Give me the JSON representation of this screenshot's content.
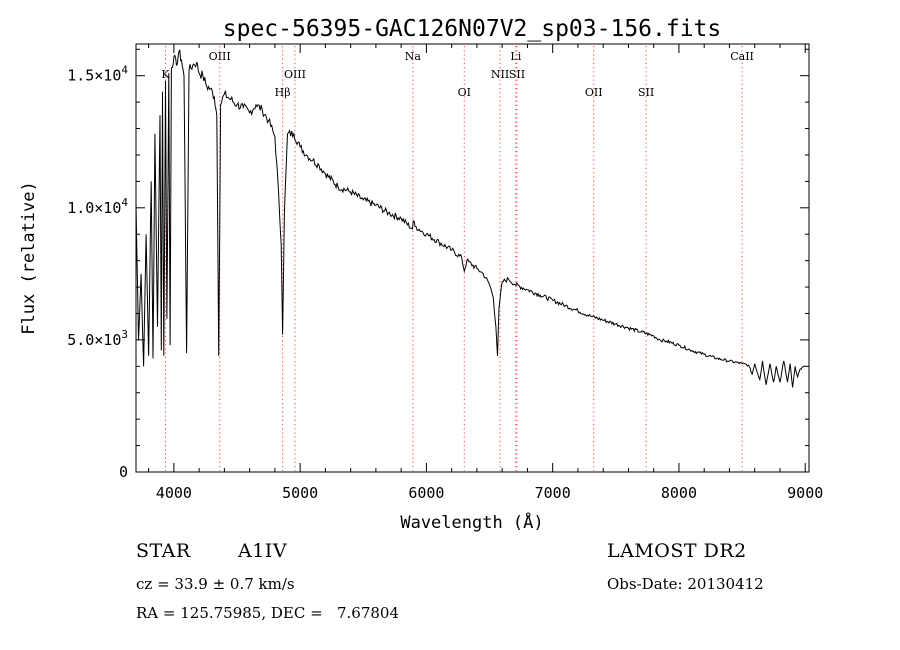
{
  "chart_data": {
    "type": "line",
    "title": "spec-56395-GAC126N07V2_sp03-156.fits",
    "xlabel": "Wavelength (Å)",
    "ylabel": "Flux (relative)",
    "xlim": [
      3700,
      9030
    ],
    "ylim": [
      0,
      16200
    ],
    "x_ticks": [
      4000,
      5000,
      6000,
      7000,
      8000,
      9000
    ],
    "x_tick_labels": [
      "4000",
      "5000",
      "6000",
      "7000",
      "8000",
      "9000"
    ],
    "y_ticks": [
      0,
      5000,
      10000,
      15000
    ],
    "y_tick_labels": [
      {
        "mantissa": "0",
        "exp": ""
      },
      {
        "mantissa": "5.0×10",
        "exp": "3"
      },
      {
        "mantissa": "1.0×10",
        "exp": "4"
      },
      {
        "mantissa": "1.5×10",
        "exp": "4"
      }
    ],
    "grid": false,
    "line_color": "#000000",
    "marker_color": "#ff4444",
    "line_markers": [
      {
        "label": "K",
        "x": 3934,
        "row": 1
      },
      {
        "label": "OIII",
        "x": 4363,
        "row": 0
      },
      {
        "label": "Hβ",
        "x": 4861,
        "row": 2
      },
      {
        "label": "OIII",
        "x": 4959,
        "row": 1
      },
      {
        "label": "Na",
        "x": 5893,
        "row": 0
      },
      {
        "label": "OI",
        "x": 6300,
        "row": 2
      },
      {
        "label": "Li",
        "x": 6708,
        "row": 0
      },
      {
        "label": "NII",
        "x": 6583,
        "row": 1
      },
      {
        "label": "SII",
        "x": 6717,
        "row": 1
      },
      {
        "label": "OII",
        "x": 7325,
        "row": 2
      },
      {
        "label": "SII",
        "x": 7740,
        "row": 2
      },
      {
        "label": "CaII",
        "x": 8500,
        "row": 0
      }
    ],
    "series": [
      {
        "x": [
          3700,
          3720,
          3740,
          3760,
          3780,
          3800,
          3820,
          3835,
          3850,
          3870,
          3890,
          3900,
          3910,
          3920,
          3934,
          3945,
          3960,
          3970,
          3980,
          4000,
          4020,
          4040,
          4060,
          4080,
          4101,
          4120,
          4150,
          4180,
          4200,
          4230,
          4260,
          4290,
          4320,
          4340,
          4355,
          4370,
          4400,
          4450,
          4500,
          4550,
          4600,
          4650,
          4700,
          4750,
          4800,
          4830,
          4850,
          4861,
          4875,
          4900,
          4950,
          5000,
          5050,
          5100,
          5150,
          5200,
          5300,
          5400,
          5500,
          5600,
          5700,
          5800,
          5890,
          5895,
          5910,
          6000,
          6100,
          6200,
          6280,
          6300,
          6320,
          6400,
          6450,
          6500,
          6530,
          6550,
          6563,
          6575,
          6600,
          6650,
          6700,
          6800,
          6900,
          7000,
          7100,
          7200,
          7300,
          7400,
          7500,
          7600,
          7700,
          7800,
          7850,
          7900,
          8000,
          8100,
          8200,
          8300,
          8400,
          8500,
          8550,
          8580,
          8600,
          8640,
          8662,
          8690,
          8720,
          8750,
          8770,
          8800,
          8830,
          8860,
          8880,
          8900,
          8920,
          8940,
          8960,
          9000
        ],
        "y": [
          10200,
          5000,
          7500,
          4000,
          9000,
          4400,
          11000,
          4300,
          12800,
          5500,
          13500,
          4600,
          14400,
          4400,
          14800,
          5800,
          15100,
          4800,
          15300,
          15700,
          15400,
          15900,
          15600,
          15000,
          4500,
          15200,
          15400,
          15500,
          15100,
          15000,
          14600,
          14500,
          14200,
          13500,
          4400,
          13900,
          14300,
          14100,
          13900,
          13800,
          13600,
          13900,
          13700,
          13300,
          12700,
          10500,
          8600,
          5200,
          9800,
          12800,
          12800,
          12300,
          12000,
          11800,
          11600,
          11300,
          10800,
          10600,
          10300,
          10100,
          9800,
          9600,
          9200,
          9500,
          9300,
          9000,
          8700,
          8400,
          8100,
          7600,
          8000,
          7700,
          7500,
          7100,
          6600,
          5500,
          4400,
          6200,
          7200,
          7300,
          7100,
          6900,
          6700,
          6500,
          6300,
          6100,
          5900,
          5750,
          5600,
          5450,
          5300,
          5150,
          5000,
          4950,
          4800,
          4600,
          4450,
          4300,
          4200,
          4100,
          4050,
          3700,
          4100,
          3500,
          4200,
          3300,
          4100,
          3400,
          4000,
          3400,
          4200,
          3400,
          4100,
          3200,
          4000,
          3600,
          3900,
          4000
        ]
      }
    ]
  },
  "info": {
    "object_class": "STAR",
    "subclass": "A1IV",
    "survey": "LAMOST DR2",
    "cz": "cz = 33.9 ± 0.7 km/s",
    "obs_date": "Obs-Date: 20130412",
    "coords": "RA = 125.75985, DEC =   7.67804"
  }
}
